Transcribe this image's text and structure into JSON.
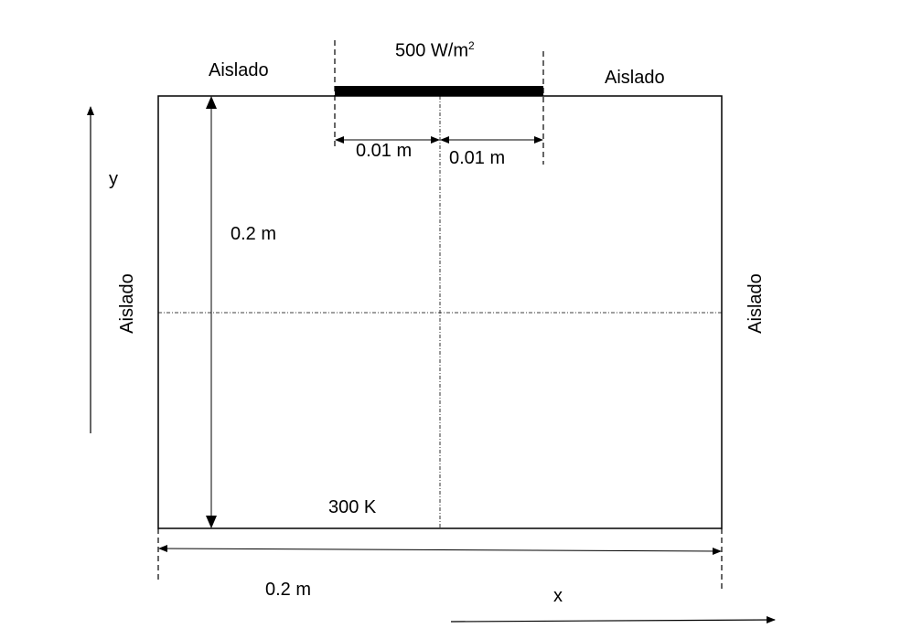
{
  "labels": {
    "top_left": "Aislado",
    "top_right": "Aislado",
    "left": "Aislado",
    "right": "Aislado",
    "heat_flux_value": "500 W/m",
    "heat_flux_exp": "2",
    "bottom_temp": "300 K",
    "height": "0.2 m",
    "width": "0.2 m",
    "half_left": "0.01 m",
    "half_right": "0.01 m",
    "axis_x": "x",
    "axis_y": "y"
  }
}
